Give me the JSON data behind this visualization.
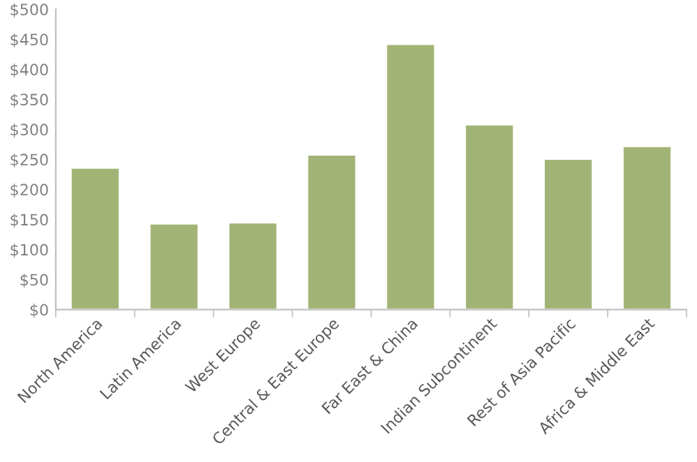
{
  "chart_data": {
    "type": "bar",
    "categories": [
      "North America",
      "Latin America",
      "West Europe",
      "Central & East Europe",
      "Far East & China",
      "Indian Subcontinent",
      "Rest of Asia Pacific",
      "Africa & Middle East"
    ],
    "values": [
      236,
      143,
      145,
      258,
      442,
      308,
      251,
      272
    ],
    "color": "#a2b475",
    "ylim": [
      0,
      500
    ],
    "yticks": [
      {
        "value": 0,
        "label": "$0"
      },
      {
        "value": 50,
        "label": "$50"
      },
      {
        "value": 100,
        "label": "$100"
      },
      {
        "value": 150,
        "label": "$150"
      },
      {
        "value": 200,
        "label": "$200"
      },
      {
        "value": 250,
        "label": "$250"
      },
      {
        "value": 300,
        "label": "$300"
      },
      {
        "value": 350,
        "label": "$350"
      },
      {
        "value": 400,
        "label": "$400"
      },
      {
        "value": 450,
        "label": "$450"
      },
      {
        "value": 500,
        "label": "$500"
      }
    ],
    "grid": false
  }
}
